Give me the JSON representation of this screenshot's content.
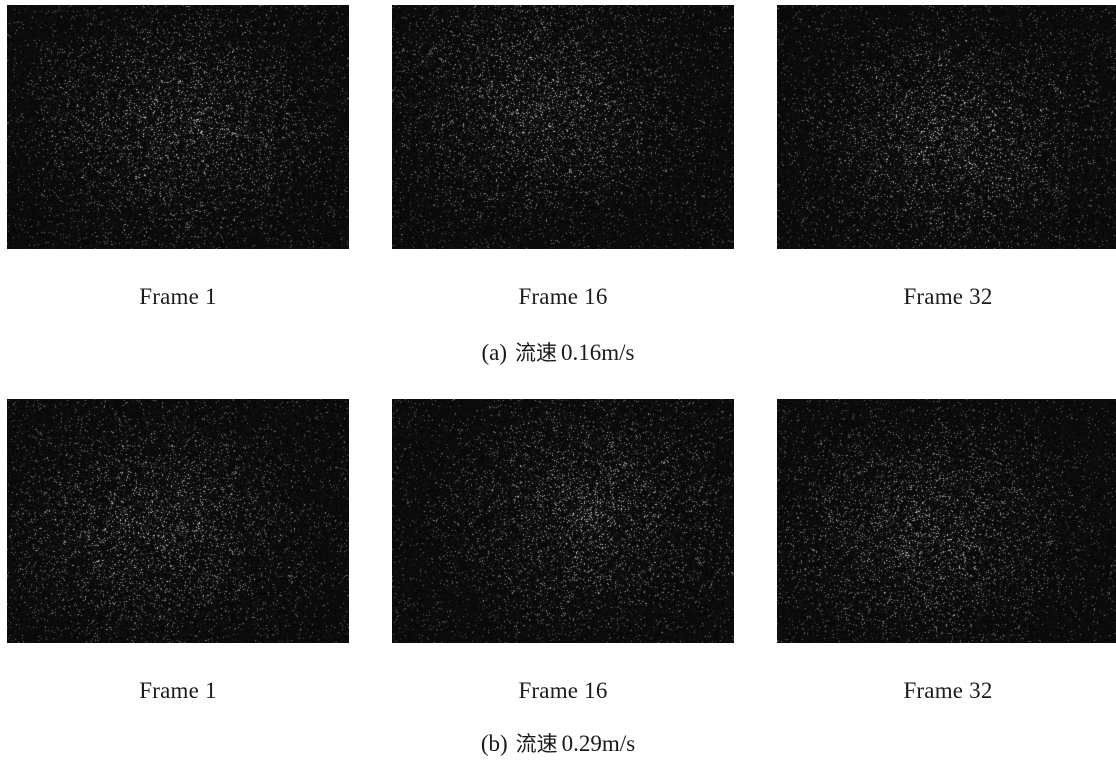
{
  "figure": {
    "rows": [
      {
        "panel_tag": "(a)",
        "caption_cn": "流速",
        "caption_value": "0.16m/s",
        "frames": [
          {
            "label": "Frame 1"
          },
          {
            "label": "Frame 16"
          },
          {
            "label": "Frame 32"
          }
        ]
      },
      {
        "panel_tag": "(b)",
        "caption_cn": "流速",
        "caption_value": "0.29m/s",
        "frames": [
          {
            "label": "Frame 1"
          },
          {
            "label": "Frame 16"
          },
          {
            "label": "Frame 32"
          }
        ]
      }
    ],
    "colors": {
      "background": "#ffffff",
      "image_background": "#050505",
      "particles": "#ffffff",
      "text": "#1a1a1a"
    }
  }
}
